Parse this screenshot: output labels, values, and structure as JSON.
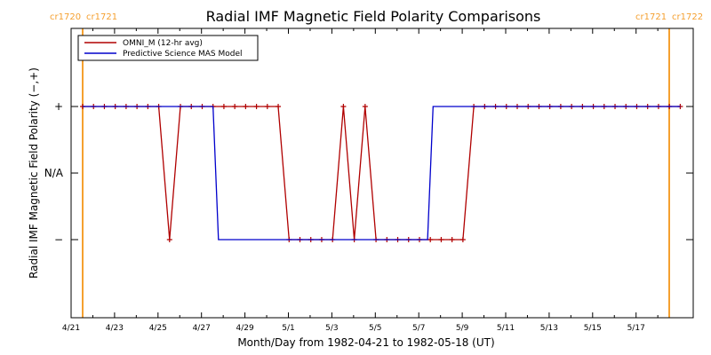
{
  "chart_data": {
    "type": "line",
    "title": "Radial IMF Magnetic Field Polarity Comparisons",
    "xlabel": "Month/Day from 1982-04-21 to 1982-05-18 (UT)",
    "ylabel": "Radial IMF Magnetic Field Polarity (−,+)",
    "x_range": [
      "1982-04-21",
      "1982-05-18T12:00"
    ],
    "xticks": [
      "4/21",
      "4/23",
      "4/25",
      "4/27",
      "4/29",
      "5/1",
      "5/3",
      "5/5",
      "5/7",
      "5/9",
      "5/11",
      "5/13",
      "5/15",
      "5/17"
    ],
    "yticks": [
      "+",
      "N/A",
      "−"
    ],
    "ylim": [
      "below −",
      "above +"
    ],
    "carrington_markers": {
      "left_labels": [
        "cr1720",
        "cr1721"
      ],
      "right_labels": [
        "cr1721",
        "cr1722"
      ],
      "line_color": "#f5a030",
      "label_color": "#f5a030"
    },
    "legend": {
      "placement": "top-left"
    },
    "series": [
      {
        "name": "OMNI_M (12-hr avg)",
        "color": "#b00000",
        "markers": "plus",
        "points": [
          [
            "1982-04-21T00:00",
            "+"
          ],
          [
            "1982-04-21T12:00",
            "+"
          ],
          [
            "1982-04-22T00:00",
            "+"
          ],
          [
            "1982-04-22T12:00",
            "+"
          ],
          [
            "1982-04-23T00:00",
            "+"
          ],
          [
            "1982-04-23T12:00",
            "+"
          ],
          [
            "1982-04-24T00:00",
            "+"
          ],
          [
            "1982-04-24T12:00",
            "+"
          ],
          [
            "1982-04-25T00:00",
            "−"
          ],
          [
            "1982-04-25T12:00",
            "+"
          ],
          [
            "1982-04-26T00:00",
            "+"
          ],
          [
            "1982-04-26T12:00",
            "+"
          ],
          [
            "1982-04-27T00:00",
            "+"
          ],
          [
            "1982-04-27T12:00",
            "+"
          ],
          [
            "1982-04-28T00:00",
            "+"
          ],
          [
            "1982-04-28T12:00",
            "+"
          ],
          [
            "1982-04-29T00:00",
            "+"
          ],
          [
            "1982-04-29T12:00",
            "+"
          ],
          [
            "1982-04-30T00:00",
            "+"
          ],
          [
            "1982-04-30T12:00",
            "−"
          ],
          [
            "1982-05-01T00:00",
            "−"
          ],
          [
            "1982-05-01T12:00",
            "−"
          ],
          [
            "1982-05-02T00:00",
            "−"
          ],
          [
            "1982-05-02T12:00",
            "−"
          ],
          [
            "1982-05-03T00:00",
            "+"
          ],
          [
            "1982-05-03T12:00",
            "−"
          ],
          [
            "1982-05-04T00:00",
            "+"
          ],
          [
            "1982-05-04T12:00",
            "−"
          ],
          [
            "1982-05-05T00:00",
            "−"
          ],
          [
            "1982-05-05T12:00",
            "−"
          ],
          [
            "1982-05-06T00:00",
            "−"
          ],
          [
            "1982-05-06T12:00",
            "−"
          ],
          [
            "1982-05-07T00:00",
            "−"
          ],
          [
            "1982-05-07T12:00",
            "−"
          ],
          [
            "1982-05-08T00:00",
            "−"
          ],
          [
            "1982-05-08T12:00",
            "−"
          ],
          [
            "1982-05-09T00:00",
            "+"
          ],
          [
            "1982-05-09T12:00",
            "+"
          ],
          [
            "1982-05-10T00:00",
            "+"
          ],
          [
            "1982-05-10T12:00",
            "+"
          ],
          [
            "1982-05-11T00:00",
            "+"
          ],
          [
            "1982-05-11T12:00",
            "+"
          ],
          [
            "1982-05-12T00:00",
            "+"
          ],
          [
            "1982-05-12T12:00",
            "+"
          ],
          [
            "1982-05-13T00:00",
            "+"
          ],
          [
            "1982-05-13T12:00",
            "+"
          ],
          [
            "1982-05-14T00:00",
            "+"
          ],
          [
            "1982-05-14T12:00",
            "+"
          ],
          [
            "1982-05-15T00:00",
            "+"
          ],
          [
            "1982-05-15T12:00",
            "+"
          ],
          [
            "1982-05-16T00:00",
            "+"
          ],
          [
            "1982-05-16T12:00",
            "+"
          ],
          [
            "1982-05-17T00:00",
            "+"
          ],
          [
            "1982-05-17T12:00",
            "+"
          ],
          [
            "1982-05-18T00:00",
            "+"
          ],
          [
            "1982-05-18T12:00",
            "+"
          ]
        ]
      },
      {
        "name": "Predictive Science MAS Model",
        "color": "#0000cc",
        "markers": "none",
        "points": [
          [
            "1982-04-21T00:00",
            "+"
          ],
          [
            "1982-04-27T00:00",
            "+"
          ],
          [
            "1982-04-27T06:00",
            "−"
          ],
          [
            "1982-05-06T21:00",
            "−"
          ],
          [
            "1982-05-07T03:00",
            "+"
          ],
          [
            "1982-05-18T12:00",
            "+"
          ]
        ]
      }
    ]
  }
}
